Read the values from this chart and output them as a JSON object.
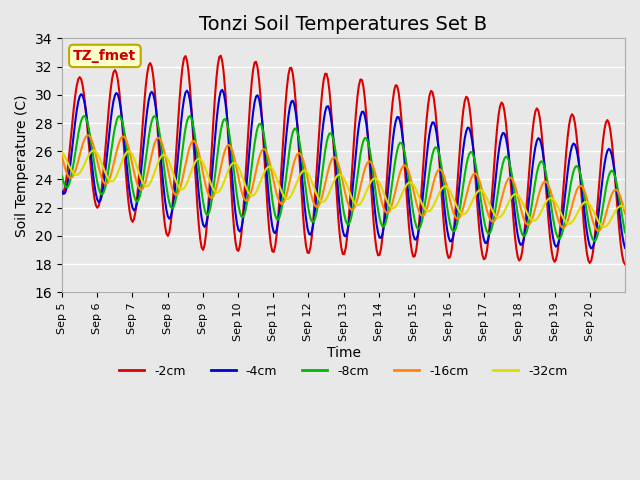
{
  "title": "Tonzi Soil Temperatures Set B",
  "xlabel": "Time",
  "ylabel": "Soil Temperature (C)",
  "ylim": [
    16,
    34
  ],
  "yticks": [
    16,
    18,
    20,
    22,
    24,
    26,
    28,
    30,
    32,
    34
  ],
  "annotation_text": "TZ_fmet",
  "line_colors": {
    "-2cm": "#dd0000",
    "-4cm": "#0000dd",
    "-8cm": "#00bb00",
    "-16cm": "#ff8800",
    "-32cm": "#dddd00"
  },
  "legend_order": [
    "-2cm",
    "-4cm",
    "-8cm",
    "-16cm",
    "-32cm"
  ],
  "bg_color": "#e8e8e8",
  "plot_bg_color": "#e8e8e8",
  "grid_color": "#ffffff",
  "xticklabels": [
    "Sep 5",
    "Sep 6",
    "Sep 7",
    "Sep 8",
    "Sep 9",
    "Sep 10",
    "Sep 11",
    "Sep 12",
    "Sep 13",
    "Sep 14",
    "Sep 15",
    "Sep 16",
    "Sep 17",
    "Sep 18",
    "Sep 19",
    "Sep 20"
  ],
  "n_days": 16,
  "day_samples": 24,
  "title_fontsize": 14,
  "label_fontsize": 10
}
